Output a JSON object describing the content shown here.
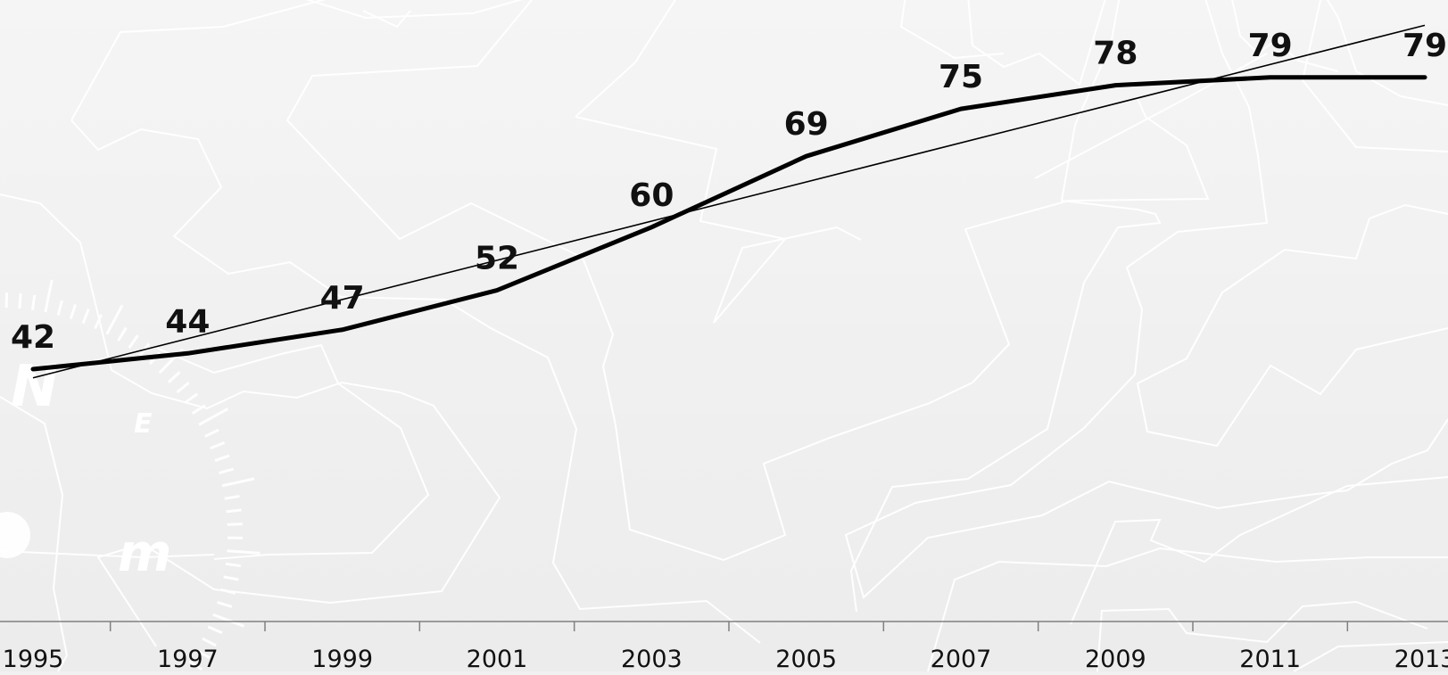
{
  "chart_data": {
    "type": "line",
    "title": "",
    "xlabel": "",
    "ylabel": "",
    "x": [
      1995,
      1997,
      1999,
      2001,
      2003,
      2005,
      2007,
      2009,
      2011,
      2013
    ],
    "x_tick_labels": [
      "1995",
      "1997",
      "1999",
      "2001",
      "2003",
      "2005",
      "2007",
      "2009",
      "2011",
      "2013"
    ],
    "series": [
      {
        "values": [
          42,
          44,
          47,
          52,
          60,
          69,
          75,
          78,
          79,
          79
        ],
        "data_labels": [
          "42",
          "44",
          "47",
          "52",
          "60",
          "69",
          "75",
          "78",
          "79",
          "79"
        ]
      }
    ],
    "trendline": {
      "type": "linear",
      "start": {
        "x": 1995,
        "y": 40.9
      },
      "end": {
        "x": 2013,
        "y": 85.6
      }
    },
    "ylim": [
      10,
      87
    ],
    "grid": false,
    "legend": "none",
    "colors": {
      "line": "#000000",
      "trendline": "#000000",
      "axis": "#808080",
      "text": "#111111",
      "background": "#f1f1f1",
      "background_art": "#ffffff"
    }
  }
}
